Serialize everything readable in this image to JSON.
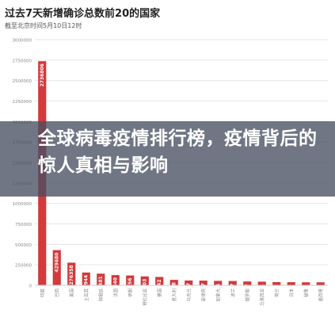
{
  "header": {
    "title": "过去7天新增确诊总数前20的国家",
    "subtitle": "截至北京时间5月10日12时"
  },
  "banner": {
    "text": "全球病毒疫情排行榜，疫情背后的惊人真相与影响"
  },
  "colors": {
    "bar": "#d23a3c",
    "grid": "#e6e6e6",
    "axis_text": "#888888",
    "value_text": "#ffffff"
  },
  "chart_data": {
    "type": "bar",
    "title": "过去7天新增确诊总数前20的国家",
    "subtitle": "截至北京时间5月10日12时",
    "ylim": [
      0,
      3000000
    ],
    "yticks": [
      0,
      250000,
      500000,
      750000,
      1000000,
      1250000,
      1500000,
      1750000,
      2000000,
      2250000,
      2500000,
      2750000,
      3000000
    ],
    "ytick_labels": [
      "0",
      "250000",
      "500000",
      "750000",
      "1000000",
      "1250000",
      "1500000",
      "1750000",
      "2000000",
      "2250000",
      "2500000",
      "2750000",
      "3000000"
    ],
    "grid": true,
    "categories": [
      "印度",
      "巴西",
      "美国",
      "土耳其",
      "阿根廷",
      "法国",
      "伊朗",
      "哥伦比亚",
      "德国",
      "意大利",
      "乌克兰",
      "菲律宾",
      "加拿大",
      "波兰",
      "俄罗斯",
      "马来西亚",
      "荷兰",
      "日本",
      "秘鲁",
      "墨西哥"
    ],
    "values": [
      2736806,
      429680,
      276358,
      155944,
      142481,
      124840,
      119956,
      109103,
      101942,
      66448,
      58637,
      57007,
      54251,
      52487,
      47007,
      44331,
      39292,
      37795,
      36682,
      36549
    ],
    "value_labels": [
      "2736806",
      "429680",
      "276358",
      "155944",
      "142481",
      "124840",
      "119956",
      "109103",
      "101942",
      "66448",
      "58637",
      "57007",
      "54251",
      "52487",
      "47007",
      "44331",
      "39292",
      "37795",
      "36682",
      "36549"
    ]
  }
}
